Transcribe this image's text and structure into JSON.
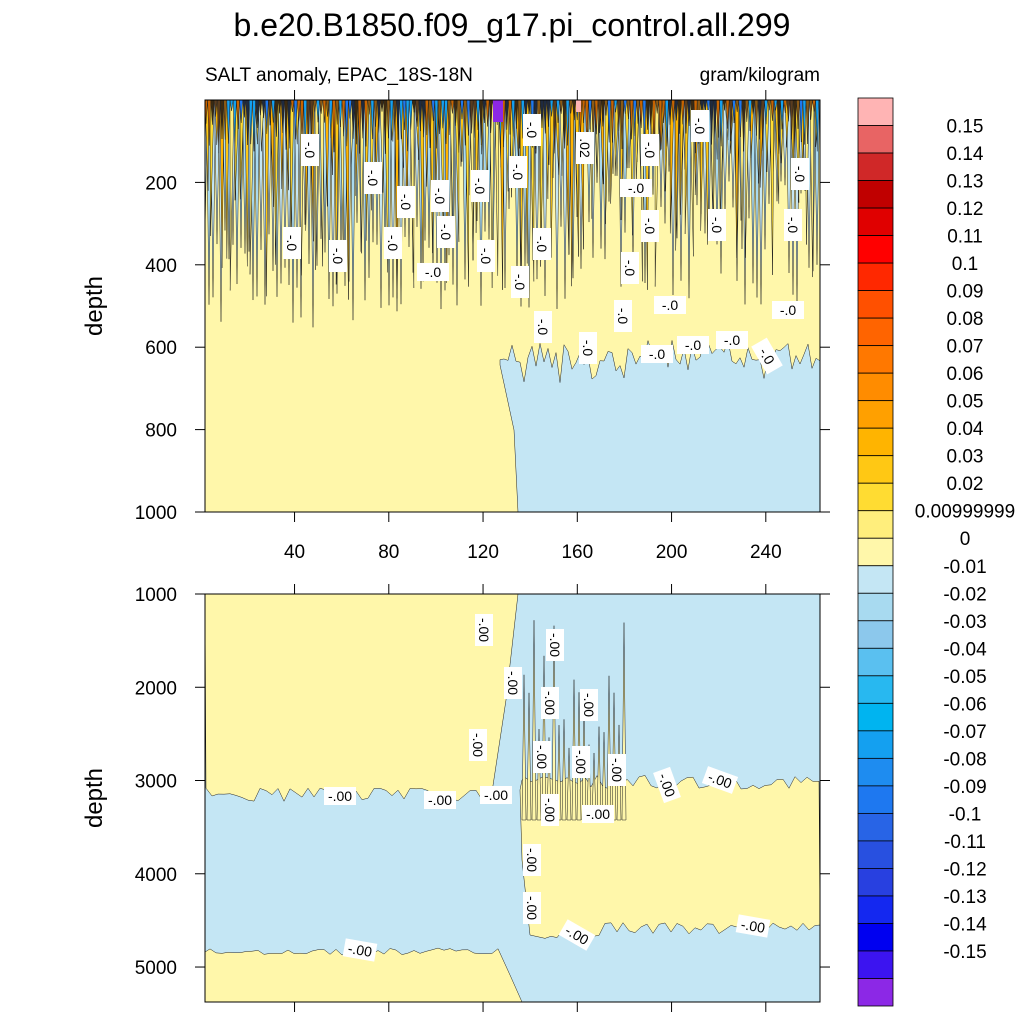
{
  "chart_data": {
    "type": "contour",
    "title": "b.e20.B1850.f09_g17.pi_control.all.299",
    "subtitle": "SALT anomaly, EPAC_18S-18N",
    "units": "gram/kilogram",
    "xlim": [
      2,
      263
    ],
    "xticks": [
      40,
      80,
      120,
      160,
      200,
      240
    ],
    "panels": [
      {
        "ylabel": "depth",
        "ylim": [
          0,
          1000
        ],
        "yticks": [
          200,
          400,
          600,
          800,
          1000
        ],
        "contour_labels": [
          "-.0",
          "-.0",
          "-.0",
          "-.0",
          "-.0",
          "-.0",
          "-.0",
          ".02",
          "-.0",
          "-.0",
          "-.0",
          "-.0",
          "-.0",
          "-.0",
          "-.0",
          "-.0",
          "-.0",
          "-.0",
          "-.0",
          "-.0",
          "-.0",
          "-.0",
          "-.0",
          "-.0",
          "-.0",
          "-.0",
          "-.0",
          "-.0",
          "-.0",
          "-.0",
          "-.0",
          "-.0",
          "-.0"
        ]
      },
      {
        "ylabel": "depth",
        "ylim": [
          1000,
          5375
        ],
        "yticks": [
          1000,
          2000,
          3000,
          4000,
          5000
        ],
        "contour_labels": [
          "-.00",
          "-.00",
          "-.00",
          "-.00",
          "-.00",
          "-.00",
          "-.00",
          "-.00",
          "-.00",
          "-.00",
          "-.00",
          "-.00",
          "-.00",
          "-.00",
          "-.00",
          "-.00",
          "-.00",
          "-.00",
          "-.00",
          "-.00",
          "-.00"
        ]
      }
    ],
    "colorbar": {
      "levels": [
        0.15,
        0.14,
        0.13,
        0.12,
        0.11,
        0.1,
        0.09,
        0.08,
        0.07,
        0.06,
        0.05,
        0.04,
        0.03,
        0.02,
        {
          "value": 0.01,
          "label": "0.00999999"
        },
        0,
        -0.01,
        -0.02,
        -0.03,
        -0.04,
        -0.05,
        -0.06,
        -0.07,
        -0.08,
        -0.09,
        -0.1,
        -0.11,
        -0.12,
        -0.13,
        -0.14,
        -0.15
      ],
      "colors": [
        "#ffb4b4",
        "#e86464",
        "#d02828",
        "#c00000",
        "#e00000",
        "#ff0000",
        "#ff2800",
        "#ff5000",
        "#ff6400",
        "#ff7800",
        "#ff8c00",
        "#ffa000",
        "#ffb400",
        "#ffc814",
        "#ffdc32",
        "#ffee7c",
        "#fff7aa",
        "#c4e6f4",
        "#a8daf0",
        "#8cc8ec",
        "#5ac0f0",
        "#28b8f0",
        "#00b4f0",
        "#14a0f0",
        "#1e8cf0",
        "#1e78f0",
        "#2864e6",
        "#2850e0",
        "#2840e0",
        "#1428f0",
        "#0000f0",
        "#3c14f0",
        "#8c28e6"
      ]
    }
  }
}
